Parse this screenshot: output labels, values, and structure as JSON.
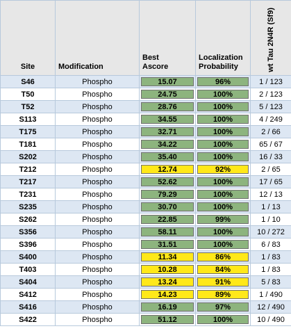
{
  "colors": {
    "green": "#8db47e",
    "yellow": "#ffe819"
  },
  "headers": {
    "site": "Site",
    "modification": "Modification",
    "best_ascore": [
      "Best",
      "Ascore"
    ],
    "localization_probability": [
      "Localization",
      "Probability"
    ],
    "wt_tau": "wt Tau 2N4R (Sf9)"
  },
  "rows": [
    {
      "site": "S46",
      "modification": "Phospho",
      "ascore": "15.07",
      "prob": "96%",
      "ratio": "1 / 123",
      "color": "green"
    },
    {
      "site": "T50",
      "modification": "Phospho",
      "ascore": "24.75",
      "prob": "100%",
      "ratio": "2 / 123",
      "color": "green"
    },
    {
      "site": "T52",
      "modification": "Phospho",
      "ascore": "28.76",
      "prob": "100%",
      "ratio": "5 / 123",
      "color": "green"
    },
    {
      "site": "S113",
      "modification": "Phospho",
      "ascore": "34.55",
      "prob": "100%",
      "ratio": "4 / 249",
      "color": "green"
    },
    {
      "site": "T175",
      "modification": "Phospho",
      "ascore": "32.71",
      "prob": "100%",
      "ratio": "2 / 66",
      "color": "green"
    },
    {
      "site": "T181",
      "modification": "Phospho",
      "ascore": "34.22",
      "prob": "100%",
      "ratio": "65 / 67",
      "color": "green"
    },
    {
      "site": "S202",
      "modification": "Phospho",
      "ascore": "35.40",
      "prob": "100%",
      "ratio": "16 / 33",
      "color": "green"
    },
    {
      "site": "T212",
      "modification": "Phospho",
      "ascore": "12.74",
      "prob": "92%",
      "ratio": "2 / 65",
      "color": "yellow"
    },
    {
      "site": "T217",
      "modification": "Phospho",
      "ascore": "52.62",
      "prob": "100%",
      "ratio": "17 / 65",
      "color": "green"
    },
    {
      "site": "T231",
      "modification": "Phospho",
      "ascore": "79.29",
      "prob": "100%",
      "ratio": "12 / 13",
      "color": "green"
    },
    {
      "site": "S235",
      "modification": "Phospho",
      "ascore": "30.70",
      "prob": "100%",
      "ratio": "1 / 13",
      "color": "green"
    },
    {
      "site": "S262",
      "modification": "Phospho",
      "ascore": "22.85",
      "prob": "99%",
      "ratio": "1 / 10",
      "color": "green"
    },
    {
      "site": "S356",
      "modification": "Phospho",
      "ascore": "58.11",
      "prob": "100%",
      "ratio": "10 / 272",
      "color": "green"
    },
    {
      "site": "S396",
      "modification": "Phospho",
      "ascore": "31.51",
      "prob": "100%",
      "ratio": "6 / 83",
      "color": "green"
    },
    {
      "site": "S400",
      "modification": "Phospho",
      "ascore": "11.34",
      "prob": "86%",
      "ratio": "1 / 83",
      "color": "yellow"
    },
    {
      "site": "T403",
      "modification": "Phospho",
      "ascore": "10.28",
      "prob": "84%",
      "ratio": "1 / 83",
      "color": "yellow"
    },
    {
      "site": "S404",
      "modification": "Phospho",
      "ascore": "13.24",
      "prob": "91%",
      "ratio": "5 / 83",
      "color": "yellow"
    },
    {
      "site": "S412",
      "modification": "Phospho",
      "ascore": "14.23",
      "prob": "89%",
      "ratio": "1 / 490",
      "color": "yellow"
    },
    {
      "site": "S416",
      "modification": "Phospho",
      "ascore": "16.19",
      "prob": "97%",
      "ratio": "12 / 490",
      "color": "green"
    },
    {
      "site": "S422",
      "modification": "Phospho",
      "ascore": "51.12",
      "prob": "100%",
      "ratio": "10 / 490",
      "color": "green"
    }
  ]
}
